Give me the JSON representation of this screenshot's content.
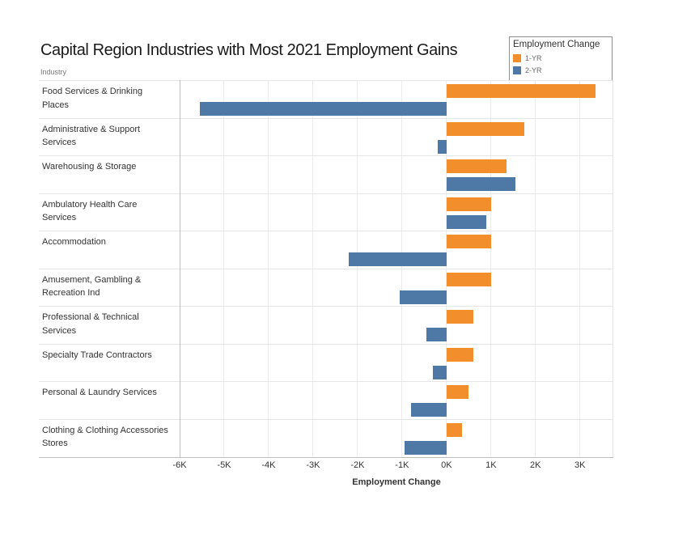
{
  "title": "Capital Region Industries with Most 2021 Employment Gains",
  "row_header": "Industry",
  "legend": {
    "title": "Employment Change",
    "items": [
      {
        "label": "1-YR",
        "color": "#F28E2B"
      },
      {
        "label": "2-YR",
        "color": "#4E79A7"
      }
    ]
  },
  "colors": {
    "bar_1yr": "#F28E2B",
    "bar_2yr": "#4E79A7",
    "gridline": "#ececec",
    "axis_line": "#bdbdbd",
    "row_divider": "#e6e6e6",
    "text": "#333333"
  },
  "chart_data": {
    "type": "bar",
    "orientation": "horizontal",
    "title": "Capital Region Industries with Most 2021 Employment Gains",
    "xlabel": "Employment Change",
    "ylabel": "Industry",
    "grid": true,
    "legend_position": "top-right",
    "categories": [
      "Food Services & Drinking Places",
      "Administrative & Support Services",
      "Warehousing & Storage",
      "Ambulatory Health Care Services",
      "Accommodation",
      "Amusement, Gambling & Recreation Ind",
      "Professional & Technical Services",
      "Specialty Trade Contractors",
      "Personal & Laundry Services",
      "Clothing & Clothing Accessories Stores"
    ],
    "series": [
      {
        "name": "1-YR",
        "color": "#F28E2B",
        "values": [
          3350,
          1750,
          1350,
          1000,
          1000,
          1000,
          600,
          600,
          500,
          350
        ]
      },
      {
        "name": "2-YR",
        "color": "#4E79A7",
        "values": [
          -5550,
          -200,
          1550,
          900,
          -2200,
          -1050,
          -450,
          -300,
          -800,
          -950
        ]
      }
    ],
    "xlim": [
      -6000,
      3750
    ],
    "xticks": [
      -6000,
      -5000,
      -4000,
      -3000,
      -2000,
      -1000,
      0,
      1000,
      2000,
      3000
    ],
    "xtick_labels": [
      "-6K",
      "-5K",
      "-4K",
      "-3K",
      "-2K",
      "-1K",
      "0K",
      "1K",
      "2K",
      "3K"
    ]
  }
}
